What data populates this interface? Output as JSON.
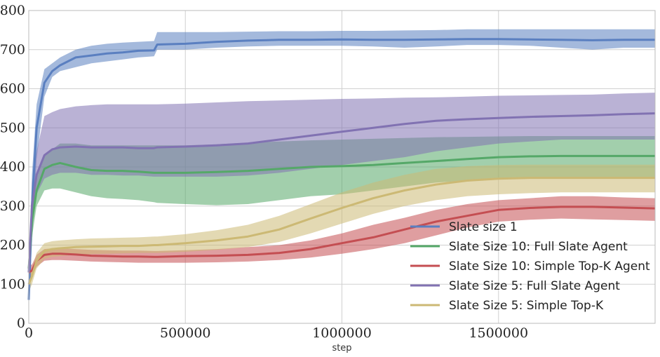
{
  "chart_data": {
    "type": "line",
    "title": "",
    "xlabel": "step",
    "ylabel": "",
    "xlim": [
      0,
      2000000
    ],
    "ylim": [
      0,
      800
    ],
    "xticks": [
      0,
      500000,
      1000000,
      1500000
    ],
    "xtick_labels": [
      "0",
      "500000",
      "1000000",
      "1500000"
    ],
    "yticks": [
      0,
      100,
      200,
      300,
      400,
      500,
      600,
      700,
      800
    ],
    "ytick_labels": [
      "0",
      "100",
      "200",
      "300",
      "400",
      "500",
      "600",
      "700",
      "800"
    ],
    "grid": true,
    "legend_position": "lower-right",
    "x": [
      0,
      10000,
      25000,
      50000,
      75000,
      100000,
      150000,
      200000,
      250000,
      300000,
      350000,
      400000,
      410000,
      500000,
      600000,
      700000,
      800000,
      900000,
      1000000,
      1100000,
      1200000,
      1300000,
      1400000,
      1500000,
      1600000,
      1700000,
      1800000,
      1900000,
      2000000
    ],
    "series": [
      {
        "name": "Slate size 1",
        "color": "#5a7fc0",
        "values": [
          60,
          300,
          500,
          615,
          645,
          660,
          680,
          685,
          690,
          693,
          697,
          698,
          713,
          715,
          720,
          723,
          725,
          725,
          726,
          725,
          725,
          726,
          727,
          727,
          726,
          725,
          724,
          725,
          725
        ],
        "lower": [
          50,
          200,
          420,
          580,
          630,
          645,
          655,
          665,
          670,
          675,
          680,
          683,
          700,
          700,
          705,
          708,
          710,
          710,
          710,
          708,
          705,
          708,
          712,
          712,
          710,
          705,
          700,
          705,
          705
        ],
        "upper": [
          70,
          380,
          560,
          650,
          665,
          680,
          700,
          710,
          715,
          718,
          720,
          722,
          745,
          745,
          745,
          746,
          747,
          747,
          748,
          748,
          749,
          750,
          752,
          752,
          752,
          752,
          752,
          752,
          752
        ]
      },
      {
        "name": "Slate Size 10: Full Slate Agent",
        "color": "#55a868",
        "values": [
          140,
          260,
          340,
          395,
          405,
          410,
          400,
          392,
          390,
          390,
          388,
          385,
          385,
          385,
          387,
          390,
          395,
          400,
          402,
          405,
          410,
          415,
          420,
          425,
          427,
          428,
          428,
          428,
          428
        ],
        "lower": [
          120,
          220,
          300,
          340,
          345,
          345,
          335,
          325,
          320,
          318,
          315,
          310,
          308,
          305,
          302,
          305,
          315,
          325,
          330,
          340,
          350,
          360,
          365,
          370,
          372,
          373,
          373,
          373,
          373
        ],
        "upper": [
          160,
          300,
          380,
          430,
          445,
          460,
          460,
          455,
          455,
          455,
          455,
          455,
          455,
          455,
          458,
          462,
          465,
          468,
          470,
          472,
          474,
          476,
          477,
          478,
          479,
          479,
          479,
          479,
          479
        ]
      },
      {
        "name": "Slate Size 10: Simple Top-K Agent",
        "color": "#c44e52",
        "values": [
          130,
          135,
          160,
          175,
          178,
          178,
          176,
          173,
          172,
          171,
          171,
          170,
          170,
          172,
          173,
          175,
          180,
          190,
          205,
          220,
          240,
          260,
          275,
          290,
          295,
          298,
          298,
          296,
          294
        ],
        "lower": [
          110,
          120,
          145,
          160,
          162,
          162,
          160,
          158,
          157,
          156,
          155,
          155,
          155,
          155,
          156,
          158,
          162,
          168,
          178,
          190,
          205,
          225,
          245,
          260,
          265,
          268,
          266,
          264,
          262
        ],
        "upper": [
          150,
          150,
          175,
          190,
          192,
          192,
          190,
          188,
          187,
          186,
          186,
          185,
          185,
          187,
          190,
          195,
          200,
          212,
          230,
          252,
          270,
          290,
          305,
          315,
          320,
          325,
          325,
          322,
          320
        ]
      },
      {
        "name": "Slate Size 5: Full Slate Agent",
        "color": "#8172b2",
        "values": [
          130,
          300,
          380,
          430,
          445,
          450,
          452,
          450,
          450,
          450,
          448,
          448,
          450,
          452,
          455,
          460,
          470,
          480,
          490,
          500,
          510,
          518,
          522,
          525,
          528,
          530,
          532,
          535,
          537
        ],
        "lower": [
          100,
          250,
          330,
          370,
          380,
          385,
          385,
          380,
          380,
          378,
          378,
          375,
          375,
          375,
          375,
          378,
          385,
          395,
          405,
          415,
          425,
          440,
          450,
          460,
          465,
          470,
          470,
          470,
          470
        ],
        "upper": [
          160,
          360,
          440,
          530,
          540,
          548,
          555,
          558,
          560,
          560,
          560,
          560,
          560,
          562,
          565,
          568,
          570,
          572,
          574,
          575,
          577,
          578,
          580,
          582,
          583,
          584,
          585,
          588,
          590
        ]
      },
      {
        "name": "Slate Size 5: Simple Top-K",
        "color": "#ccb974",
        "values": [
          100,
          120,
          160,
          185,
          190,
          192,
          195,
          196,
          197,
          198,
          198,
          200,
          200,
          205,
          212,
          222,
          240,
          268,
          295,
          320,
          340,
          355,
          365,
          370,
          372,
          372,
          372,
          372,
          372
        ],
        "lower": [
          80,
          100,
          140,
          165,
          170,
          172,
          175,
          177,
          178,
          179,
          180,
          180,
          180,
          183,
          188,
          195,
          208,
          230,
          255,
          280,
          300,
          315,
          325,
          330,
          333,
          335,
          335,
          335,
          335
        ],
        "upper": [
          120,
          140,
          180,
          205,
          210,
          212,
          215,
          217,
          218,
          219,
          220,
          222,
          222,
          228,
          238,
          252,
          275,
          305,
          335,
          360,
          380,
          395,
          402,
          405,
          406,
          406,
          406,
          406,
          406
        ]
      }
    ]
  }
}
